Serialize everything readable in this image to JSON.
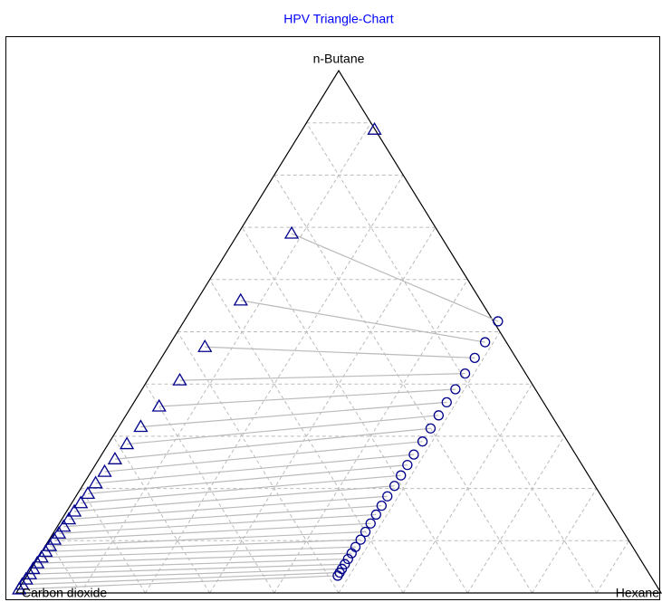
{
  "chart_data": {
    "type": "ternary",
    "title": "HPV Triangle-Chart",
    "title_color": "#0000ff",
    "labels": [
      "Carbon dioxide",
      "Hexane",
      "n-Butane"
    ],
    "ticks": [
      0.1,
      0.2,
      0.3,
      0.4,
      0.5,
      0.6,
      0.7,
      0.8,
      0.9
    ],
    "grid": true,
    "tie_lines": true,
    "series": [
      {
        "marker": "triangle",
        "color": "#00008b",
        "butane": [
          0.887,
          0.688,
          0.56,
          0.471,
          0.407,
          0.357,
          0.318,
          0.285,
          0.256,
          0.232,
          0.21,
          0.19,
          0.172,
          0.156,
          0.141,
          0.127,
          0.114,
          0.102,
          0.09,
          0.079,
          0.068,
          0.057,
          0.046,
          0.036,
          0.026,
          0.016,
          0.007
        ],
        "hexane": [
          0.112,
          0.083,
          0.068,
          0.057,
          0.05,
          0.043,
          0.034,
          0.029,
          0.025,
          0.021,
          0.018,
          0.016,
          0.014,
          0.012,
          0.011,
          0.01,
          0.009,
          0.008,
          0.007,
          0.006,
          0.005,
          0.004,
          0.003,
          0.003,
          0.002,
          0.001,
          0.001
        ]
      },
      {
        "marker": "circle",
        "color": "#00008b",
        "butane": [
          null,
          0.52,
          0.48,
          0.45,
          0.42,
          0.39,
          0.365,
          0.34,
          0.315,
          0.29,
          0.265,
          0.245,
          0.225,
          0.205,
          0.185,
          0.167,
          0.15,
          0.133,
          0.117,
          0.102,
          0.088,
          0.076,
          0.065,
          0.055,
          0.046,
          0.039,
          0.033
        ],
        "hexane": [
          null,
          0.487,
          0.487,
          0.486,
          0.486,
          0.486,
          0.485,
          0.485,
          0.485,
          0.485,
          0.484,
          0.484,
          0.484,
          0.484,
          0.483,
          0.483,
          0.483,
          0.483,
          0.483,
          0.483,
          0.482,
          0.482,
          0.482,
          0.482,
          0.482,
          0.482,
          0.482
        ]
      }
    ]
  }
}
